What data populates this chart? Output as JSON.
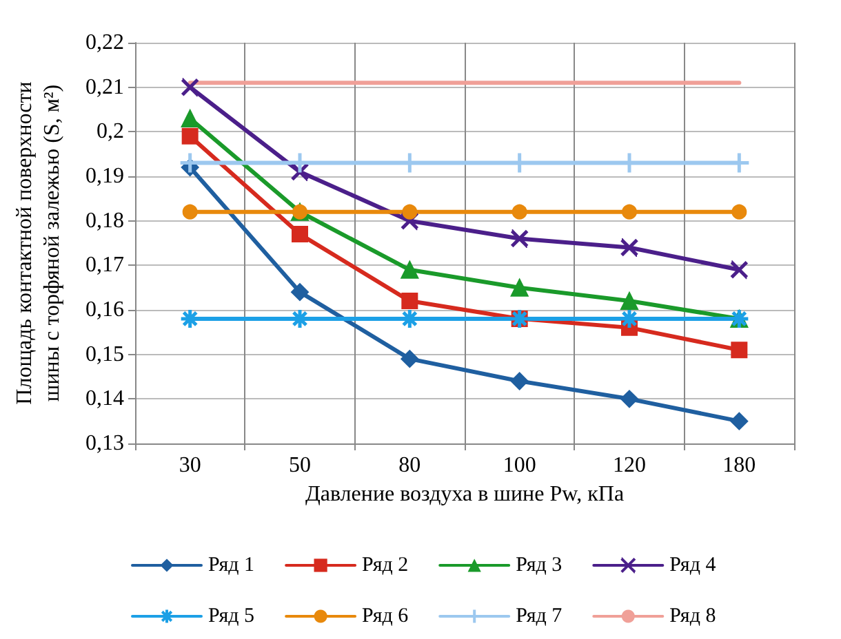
{
  "chart_data": {
    "type": "line",
    "xlabel": "Давление воздуха в шине Pw, кПа",
    "ylabel": "Площадь контактной поверхности\nшины с торфяной залежью (S, м²)",
    "categories": [
      "30",
      "50",
      "80",
      "100",
      "120",
      "180"
    ],
    "ylim": [
      0.13,
      0.22
    ],
    "yticks": [
      {
        "value": 0.13,
        "label": "0,13"
      },
      {
        "value": 0.14,
        "label": "0,14"
      },
      {
        "value": 0.15,
        "label": "0,15"
      },
      {
        "value": 0.16,
        "label": "0,16"
      },
      {
        "value": 0.17,
        "label": "0,17"
      },
      {
        "value": 0.18,
        "label": "0,18"
      },
      {
        "value": 0.19,
        "label": "0,19"
      },
      {
        "value": 0.2,
        "label": "0,2"
      },
      {
        "value": 0.21,
        "label": "0,21"
      },
      {
        "value": 0.22,
        "label": "0,22"
      }
    ],
    "grid": true,
    "legend": "bottom",
    "series": [
      {
        "name": "Ряд 1",
        "color": "#1f5fa0",
        "marker": "diamond",
        "values": [
          0.192,
          0.164,
          0.149,
          0.144,
          0.14,
          0.135
        ]
      },
      {
        "name": "Ряд 2",
        "color": "#d62a1e",
        "marker": "square",
        "values": [
          0.199,
          0.177,
          0.162,
          0.158,
          0.156,
          0.151
        ]
      },
      {
        "name": "Ряд 3",
        "color": "#1a9a2a",
        "marker": "triangle",
        "values": [
          0.203,
          0.182,
          0.169,
          0.165,
          0.162,
          0.158
        ]
      },
      {
        "name": "Ряд 4",
        "color": "#4b1f8a",
        "marker": "cross",
        "values": [
          0.21,
          0.191,
          0.18,
          0.176,
          0.174,
          0.169
        ]
      },
      {
        "name": "Ряд 5",
        "color": "#1ca0e6",
        "marker": "cross",
        "values": [
          0.158,
          0.158,
          0.158,
          0.158,
          0.158,
          0.158
        ]
      },
      {
        "name": "Ряд 6",
        "color": "#e8890c",
        "marker": "circle",
        "values": [
          0.182,
          0.182,
          0.182,
          0.182,
          0.182,
          0.182
        ]
      },
      {
        "name": "Ряд 7",
        "color": "#9cc8ef",
        "marker": "plus",
        "values": [
          0.193,
          0.193,
          0.193,
          0.193,
          0.193,
          0.193
        ]
      },
      {
        "name": "Ряд 8",
        "color": "#f0a098",
        "marker": "none",
        "values": [
          0.211,
          0.211,
          0.211,
          0.211,
          0.211,
          0.211
        ]
      }
    ]
  }
}
